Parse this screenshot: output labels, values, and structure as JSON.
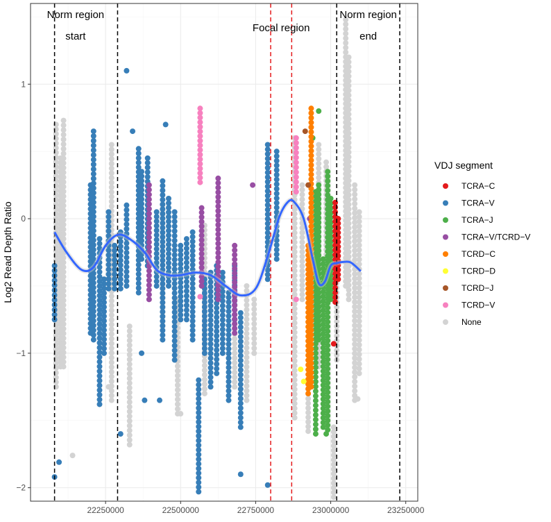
{
  "chart_data": {
    "type": "scatter",
    "title": "",
    "xlabel": "",
    "ylabel": "Log2 Read Depth Ratio",
    "xlim": [
      22000000,
      23290000
    ],
    "ylim": [
      -2.1,
      1.6
    ],
    "x_ticks": [
      22250000,
      22500000,
      22750000,
      23000000,
      23250000
    ],
    "x_tick_labels": [
      "22250000",
      "22500000",
      "22750000",
      "23000000",
      "23250000"
    ],
    "y_ticks": [
      -2,
      -1,
      0,
      1
    ],
    "y_tick_labels": [
      "−2",
      "−1",
      "0",
      "1"
    ],
    "grid": true,
    "legend": {
      "title": "VDJ segment",
      "position": "right",
      "entries": [
        {
          "label": "TCRA−C",
          "color": "#E41A1C"
        },
        {
          "label": "TCRA−V",
          "color": "#377EB8"
        },
        {
          "label": "TCRA−J",
          "color": "#4DAF4A"
        },
        {
          "label": "TCRA−V/TCRD−V",
          "color": "#984EA3"
        },
        {
          "label": "TCRD−C",
          "color": "#FF7F00"
        },
        {
          "label": "TCRD−D",
          "color": "#FFFF33"
        },
        {
          "label": "TCRD−J",
          "color": "#A65628"
        },
        {
          "label": "TCRD−V",
          "color": "#F781BF"
        },
        {
          "label": "None",
          "color": "#D3D3D3"
        }
      ]
    },
    "vlines": [
      {
        "x": 22080000,
        "color": "#000000"
      },
      {
        "x": 22290000,
        "color": "#000000"
      },
      {
        "x": 22800000,
        "color": "#E41A1C"
      },
      {
        "x": 22870000,
        "color": "#E41A1C"
      },
      {
        "x": 23020000,
        "color": "#000000"
      },
      {
        "x": 23230000,
        "color": "#000000"
      }
    ],
    "annotations": [
      {
        "text": "Norm region",
        "x": 22150000,
        "y": 1.47
      },
      {
        "text": "start",
        "x": 22150000,
        "y": 1.42
      },
      {
        "text": "Focal region",
        "x": 22835000,
        "y": 1.47
      },
      {
        "text": "Norm region",
        "x": 23125000,
        "y": 1.47
      },
      {
        "text": "end",
        "x": 23125000,
        "y": 1.42
      }
    ],
    "trend_line": {
      "color": "#3366FF",
      "x": [
        22080000,
        22120000,
        22170000,
        22210000,
        22250000,
        22290000,
        22330000,
        22380000,
        22420000,
        22460000,
        22500000,
        22550000,
        22600000,
        22650000,
        22700000,
        22750000,
        22790000,
        22830000,
        22860000,
        22880000,
        22910000,
        22940000,
        22960000,
        22980000,
        23000000,
        23020000,
        23050000,
        23070000,
        23100000
      ],
      "y": [
        -0.1,
        -0.25,
        -0.38,
        -0.36,
        -0.2,
        -0.12,
        -0.15,
        -0.25,
        -0.38,
        -0.42,
        -0.42,
        -0.4,
        -0.42,
        -0.5,
        -0.57,
        -0.52,
        -0.28,
        0.02,
        0.13,
        0.12,
        0.0,
        -0.3,
        -0.48,
        -0.47,
        -0.35,
        -0.33,
        -0.32,
        -0.33,
        -0.39
      ]
    },
    "series": [
      {
        "name": "None",
        "color": "#D3D3D3",
        "clusters": [
          {
            "x": 22085000,
            "y_range": [
              -1.25,
              0.7
            ]
          },
          {
            "x": 22100000,
            "y_range": [
              -1.1,
              0.45
            ]
          },
          {
            "x": 22110000,
            "y_range": [
              -1.1,
              0.73
            ]
          },
          {
            "x": 22270000,
            "y_range": [
              -1.35,
              0.55
            ]
          },
          {
            "x": 22330000,
            "y_range": [
              -1.68,
              -0.8
            ]
          },
          {
            "x": 22440000,
            "y_range": [
              -0.8,
              0.1
            ]
          },
          {
            "x": 22490000,
            "y_range": [
              -1.45,
              -0.6
            ]
          },
          {
            "x": 22580000,
            "y_range": [
              -1.3,
              -0.05
            ]
          },
          {
            "x": 22680000,
            "y_range": [
              -1.25,
              -0.75
            ]
          },
          {
            "x": 22720000,
            "y_range": [
              -1.35,
              -0.5
            ]
          },
          {
            "x": 22745000,
            "y_range": [
              -1.0,
              -0.6
            ]
          },
          {
            "x": 22880000,
            "y_range": [
              -1.48,
              0.6
            ]
          },
          {
            "x": 22905000,
            "y_range": [
              -0.6,
              0.25
            ]
          },
          {
            "x": 22925000,
            "y_range": [
              -1.58,
              -1.2
            ]
          },
          {
            "x": 22940000,
            "y_range": [
              -0.8,
              -0.35
            ]
          },
          {
            "x": 22960000,
            "y_range": [
              -1.1,
              0.55
            ]
          },
          {
            "x": 22985000,
            "y_range": [
              -0.3,
              0.42
            ]
          },
          {
            "x": 23010000,
            "y_range": [
              -2.07,
              -1.55
            ]
          },
          {
            "x": 23020000,
            "y_range": [
              -1.05,
              -0.3
            ]
          },
          {
            "x": 23050000,
            "y_range": [
              -0.5,
              1.48
            ]
          },
          {
            "x": 23060000,
            "y_range": [
              -0.6,
              1.2
            ]
          },
          {
            "x": 23080000,
            "y_range": [
              -1.35,
              0.25
            ]
          },
          {
            "x": 23095000,
            "y_range": [
              -1.15,
              0.05
            ]
          }
        ],
        "points": [
          {
            "x": 22140000,
            "y": -1.76
          },
          {
            "x": 22260000,
            "y": -1.25
          },
          {
            "x": 22500000,
            "y": -1.45
          },
          {
            "x": 23090000,
            "y": -1.34
          }
        ]
      },
      {
        "name": "TCRA−V",
        "color": "#377EB8",
        "clusters": [
          {
            "x": 22080000,
            "y_range": [
              -0.75,
              -0.35
            ]
          },
          {
            "x": 22200000,
            "y_range": [
              -0.85,
              0.25
            ]
          },
          {
            "x": 22210000,
            "y_range": [
              -0.9,
              0.65
            ]
          },
          {
            "x": 22230000,
            "y_range": [
              -1.38,
              -0.15
            ]
          },
          {
            "x": 22245000,
            "y_range": [
              -1.0,
              -0.45
            ]
          },
          {
            "x": 22260000,
            "y_range": [
              -0.52,
              0.05
            ]
          },
          {
            "x": 22280000,
            "y_range": [
              -0.52,
              -0.2
            ]
          },
          {
            "x": 22300000,
            "y_range": [
              -0.52,
              -0.1
            ]
          },
          {
            "x": 22320000,
            "y_range": [
              -0.5,
              0.1
            ]
          },
          {
            "x": 22360000,
            "y_range": [
              -0.55,
              0.52
            ]
          },
          {
            "x": 22370000,
            "y_range": [
              -0.3,
              0.35
            ]
          },
          {
            "x": 22390000,
            "y_range": [
              -0.35,
              0.45
            ]
          },
          {
            "x": 22420000,
            "y_range": [
              -0.5,
              0.05
            ]
          },
          {
            "x": 22440000,
            "y_range": [
              -0.9,
              0.28
            ]
          },
          {
            "x": 22460000,
            "y_range": [
              -0.5,
              0.15
            ]
          },
          {
            "x": 22480000,
            "y_range": [
              -1.05,
              0.05
            ]
          },
          {
            "x": 22500000,
            "y_range": [
              -0.75,
              -0.2
            ]
          },
          {
            "x": 22520000,
            "y_range": [
              -0.75,
              -0.15
            ]
          },
          {
            "x": 22540000,
            "y_range": [
              -0.9,
              -0.1
            ]
          },
          {
            "x": 22560000,
            "y_range": [
              -2.03,
              -1.2
            ]
          },
          {
            "x": 22580000,
            "y_range": [
              -1.0,
              -0.45
            ]
          },
          {
            "x": 22600000,
            "y_range": [
              -1.25,
              -0.4
            ]
          },
          {
            "x": 22620000,
            "y_range": [
              -1.15,
              -0.35
            ]
          },
          {
            "x": 22640000,
            "y_range": [
              -1.0,
              -0.4
            ]
          },
          {
            "x": 22660000,
            "y_range": [
              -1.35,
              -0.55
            ]
          },
          {
            "x": 22680000,
            "y_range": [
              -0.75,
              -0.35
            ]
          },
          {
            "x": 22700000,
            "y_range": [
              -1.55,
              -0.7
            ]
          },
          {
            "x": 22790000,
            "y_range": [
              -0.45,
              0.55
            ]
          },
          {
            "x": 22820000,
            "y_range": [
              -0.3,
              0.5
            ]
          }
        ],
        "points": [
          {
            "x": 22080000,
            "y": -1.92
          },
          {
            "x": 22095000,
            "y": -1.81
          },
          {
            "x": 22320000,
            "y": 1.1
          },
          {
            "x": 22340000,
            "y": 0.65
          },
          {
            "x": 22450000,
            "y": 0.7
          },
          {
            "x": 22370000,
            "y": -1.0
          },
          {
            "x": 22380000,
            "y": -1.35
          },
          {
            "x": 22430000,
            "y": -1.35
          },
          {
            "x": 22700000,
            "y": -1.9
          },
          {
            "x": 22790000,
            "y": -1.98
          },
          {
            "x": 22300000,
            "y": -1.6
          }
        ]
      },
      {
        "name": "TCRA−J",
        "color": "#4DAF4A",
        "clusters": [
          {
            "x": 22950000,
            "y_range": [
              -1.6,
              0.2
            ]
          },
          {
            "x": 22960000,
            "y_range": [
              -0.9,
              0.25
            ]
          },
          {
            "x": 22975000,
            "y_range": [
              -1.55,
              -0.3
            ]
          },
          {
            "x": 22990000,
            "y_range": [
              -1.57,
              0.35
            ]
          },
          {
            "x": 23000000,
            "y_range": [
              -0.6,
              0.15
            ]
          }
        ],
        "points": [
          {
            "x": 22940000,
            "y": 0.6
          },
          {
            "x": 22960000,
            "y": 0.8
          },
          {
            "x": 22985000,
            "y": -1.6
          }
        ]
      },
      {
        "name": "TCRA−V/TCRD−V",
        "color": "#984EA3",
        "clusters": [
          {
            "x": 22395000,
            "y_range": [
              -0.6,
              0.25
            ]
          },
          {
            "x": 22570000,
            "y_range": [
              -0.5,
              0.08
            ]
          },
          {
            "x": 22625000,
            "y_range": [
              -0.6,
              0.3
            ]
          },
          {
            "x": 22680000,
            "y_range": [
              -0.85,
              -0.2
            ]
          }
        ],
        "points": [
          {
            "x": 22740000,
            "y": 0.25
          },
          {
            "x": 22930000,
            "y": 0.0
          }
        ]
      },
      {
        "name": "TCRD−C",
        "color": "#FF7F00",
        "clusters": [
          {
            "x": 22925000,
            "y_range": [
              -1.3,
              -0.2
            ]
          },
          {
            "x": 22935000,
            "y_range": [
              -1.25,
              0.82
            ]
          }
        ],
        "points": []
      },
      {
        "name": "TCRD−D",
        "color": "#FFFF33",
        "clusters": [],
        "points": [
          {
            "x": 22900000,
            "y": -1.12
          },
          {
            "x": 22910000,
            "y": -1.21
          }
        ]
      },
      {
        "name": "TCRD−J",
        "color": "#A65628",
        "clusters": [],
        "points": [
          {
            "x": 22915000,
            "y": 0.65
          },
          {
            "x": 22925000,
            "y": 0.25
          }
        ]
      },
      {
        "name": "TCRD−V",
        "color": "#F781BF",
        "clusters": [
          {
            "x": 22565000,
            "y_range": [
              0.27,
              0.82
            ]
          },
          {
            "x": 22885000,
            "y_range": [
              0.2,
              0.6
            ]
          }
        ],
        "points": [
          {
            "x": 22565000,
            "y": -0.58
          },
          {
            "x": 22885000,
            "y": -0.6
          }
        ]
      },
      {
        "name": "TCRA−C",
        "color": "#E41A1C",
        "clusters": [
          {
            "x": 23015000,
            "y_range": [
              -0.62,
              0.12
            ]
          },
          {
            "x": 23025000,
            "y_range": [
              -0.45,
              0.0
            ]
          }
        ],
        "points": [
          {
            "x": 23010000,
            "y": -0.93
          }
        ]
      }
    ]
  }
}
